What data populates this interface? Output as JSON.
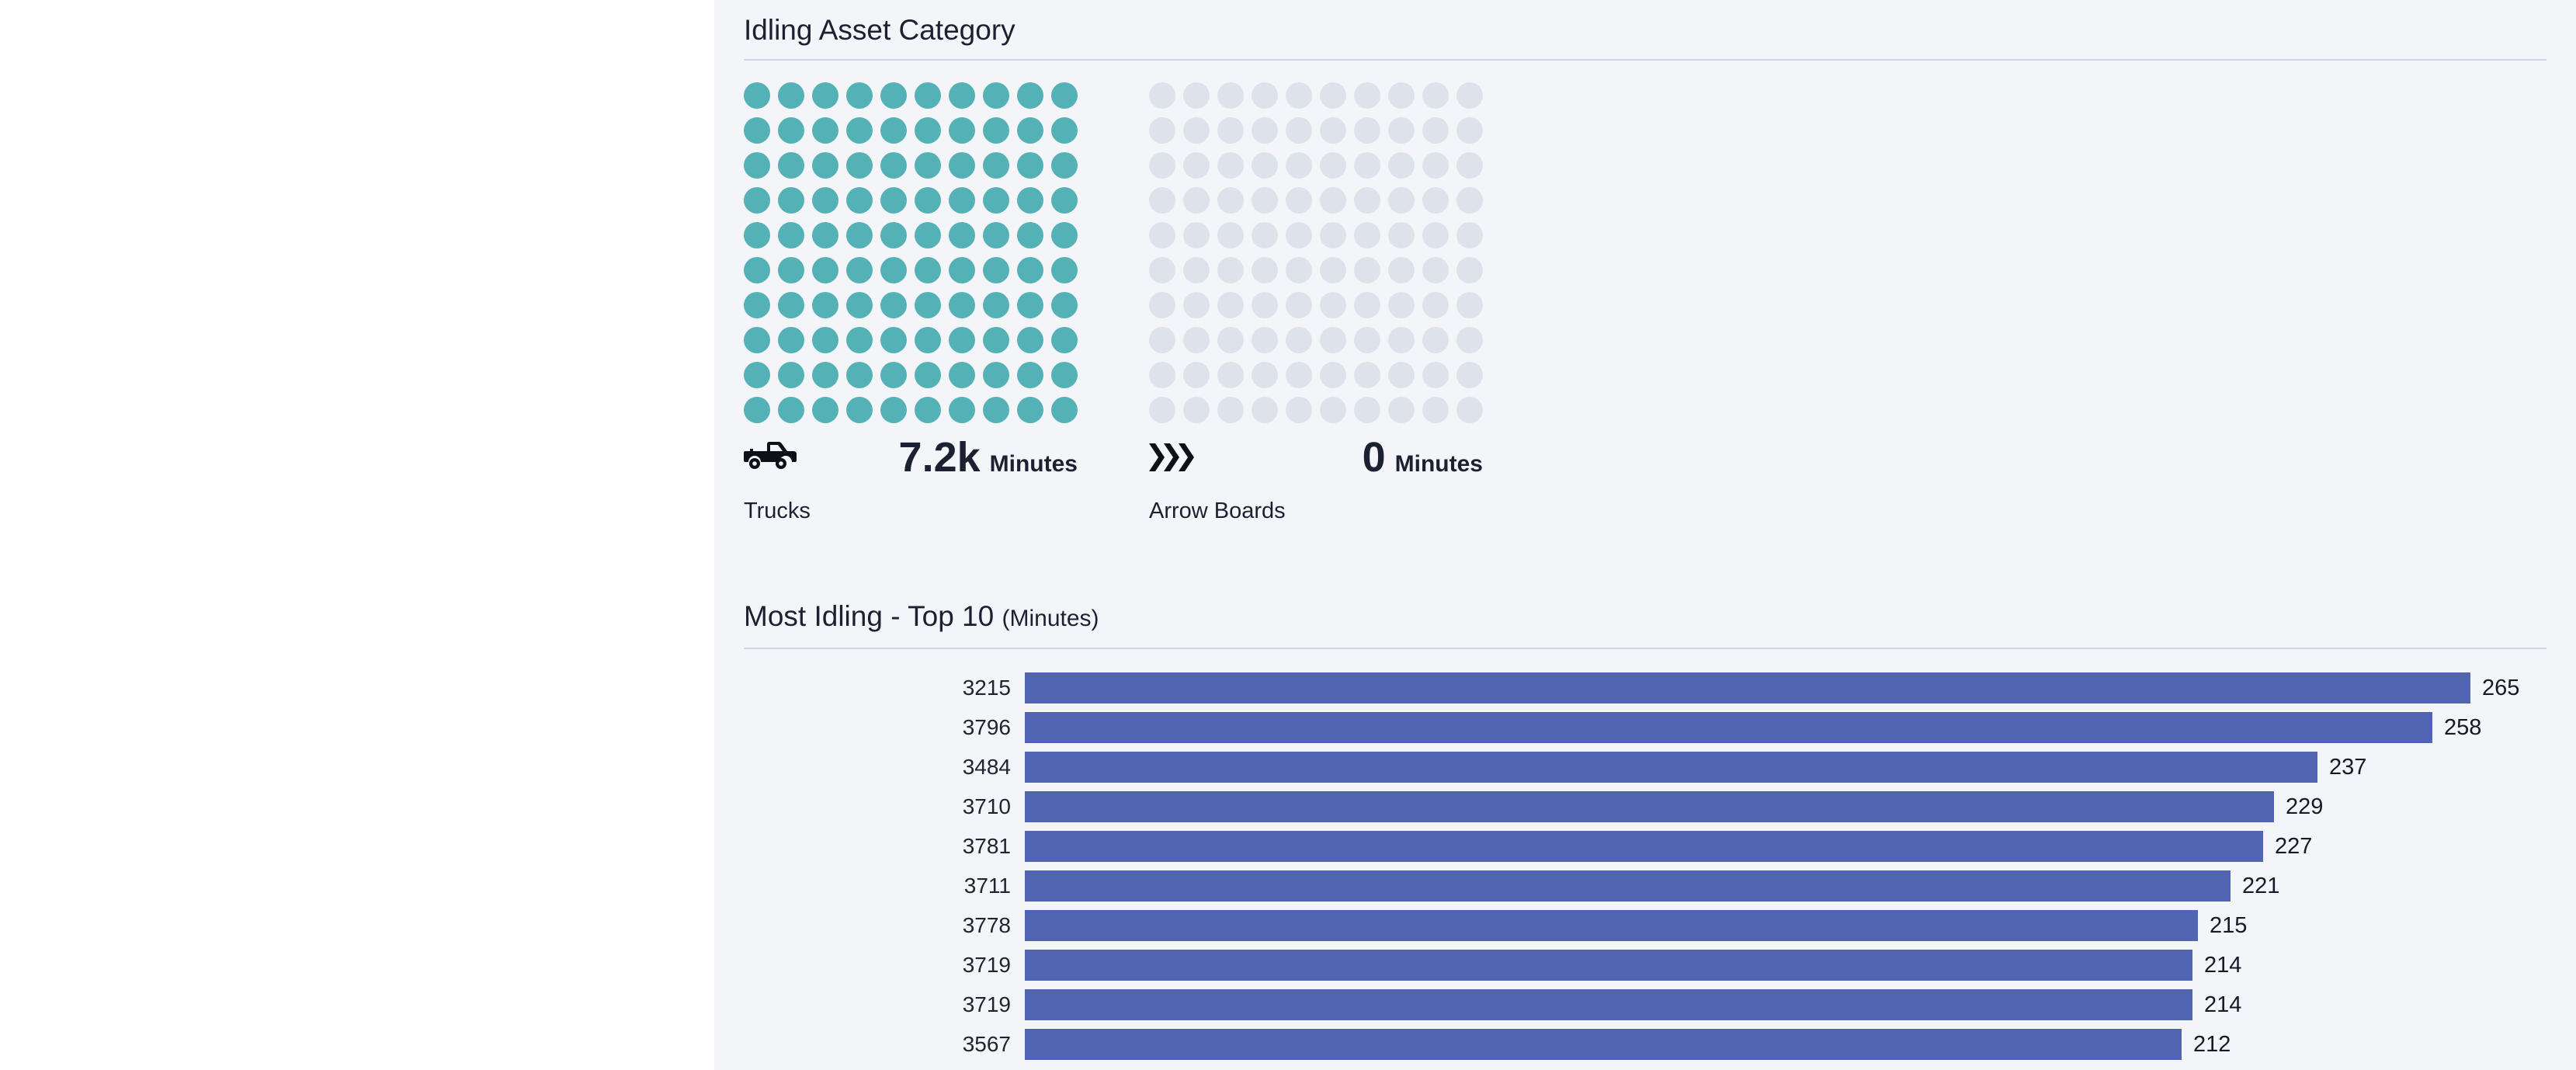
{
  "colors": {
    "panel_background": "#f4f5f9",
    "filled_dot": "#54b1b6",
    "empty_dot": "#dde2eb",
    "bar": "#5064b1",
    "divider": "#cfd5e1",
    "text": "#1c2132"
  },
  "sections": {
    "idling_asset_category": {
      "title": "Idling Asset Category",
      "categories": [
        {
          "name": "Trucks",
          "icon": "pickup-truck-icon",
          "value": "7.2k",
          "unit": "Minutes",
          "dots_total": 100,
          "dots_filled": 100
        },
        {
          "name": "Arrow Boards",
          "icon": "triple-chevron-right-icon",
          "value": "0",
          "unit": "Minutes",
          "dots_total": 100,
          "dots_filled": 0
        }
      ]
    },
    "most_idling": {
      "title": "Most Idling - Top 10",
      "title_suffix": "(Minutes)",
      "items": [
        {
          "label": "3215",
          "value": 265
        },
        {
          "label": "3796",
          "value": 258
        },
        {
          "label": "3484",
          "value": 237
        },
        {
          "label": "3710",
          "value": 229
        },
        {
          "label": "3781",
          "value": 227
        },
        {
          "label": "3711",
          "value": 221
        },
        {
          "label": "3778",
          "value": 215
        },
        {
          "label": "3719",
          "value": 214
        },
        {
          "label": "3719",
          "value": 214
        },
        {
          "label": "3567",
          "value": 212
        }
      ]
    }
  },
  "chart_data": [
    {
      "type": "pictograph",
      "title": "Idling Asset Category",
      "unit": "Minutes",
      "categories": [
        "Trucks",
        "Arrow Boards"
      ],
      "values_display": [
        "7.2k",
        "0"
      ],
      "values": [
        7200,
        0
      ],
      "dots_per_category": 100,
      "dots_filled": [
        100,
        0
      ],
      "filled_color": "#54b1b6",
      "empty_color": "#dde2eb"
    },
    {
      "type": "bar",
      "orientation": "horizontal",
      "title": "Most Idling - Top 10 (Minutes)",
      "categories": [
        "3215",
        "3796",
        "3484",
        "3710",
        "3781",
        "3711",
        "3778",
        "3719",
        "3719",
        "3567"
      ],
      "values": [
        265,
        258,
        237,
        229,
        227,
        221,
        215,
        214,
        214,
        212
      ],
      "xlabel": "",
      "ylabel": "",
      "xlim": [
        0,
        265
      ],
      "grid": false,
      "legend": false,
      "bar_color": "#5064b1",
      "data_labels": true
    }
  ]
}
